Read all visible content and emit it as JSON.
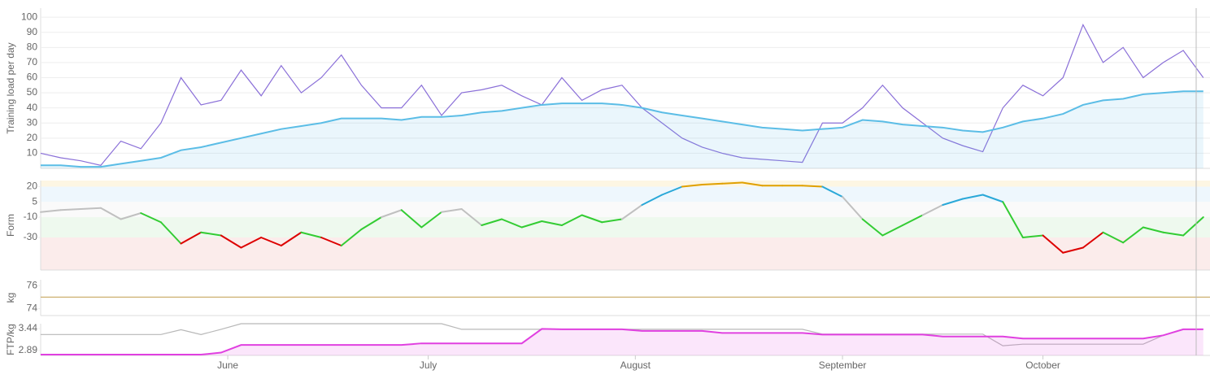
{
  "chart_data": [
    {
      "type": "line",
      "ylabel": "Training load per day",
      "x": [
        0,
        3,
        6,
        9,
        12,
        15,
        18,
        21,
        24,
        27,
        30,
        33,
        36,
        39,
        42,
        45,
        48,
        51,
        54,
        57,
        60,
        63,
        66,
        69,
        72,
        75,
        78,
        81,
        84,
        87,
        90,
        93,
        96,
        99,
        102,
        105,
        108,
        111,
        114,
        117,
        120,
        123,
        126,
        129,
        132,
        135,
        138,
        141,
        144,
        147,
        150,
        153,
        156,
        159,
        162,
        165,
        168,
        171,
        174
      ],
      "xlim": [
        0,
        175
      ],
      "ylim": [
        0,
        106
      ],
      "yticks": [
        10,
        20,
        30,
        40,
        50,
        60,
        70,
        80,
        90,
        100
      ],
      "grid": true,
      "series": [
        {
          "color": "#8a6fd8",
          "values": [
            10,
            7,
            5,
            2,
            18,
            13,
            30,
            60,
            42,
            45,
            65,
            48,
            68,
            50,
            60,
            75,
            55,
            40,
            40,
            55,
            35,
            50,
            52,
            55,
            48,
            42,
            60,
            45,
            52,
            55,
            40,
            30,
            20,
            14,
            10,
            7,
            6,
            5,
            4,
            30,
            30,
            40,
            55,
            40,
            30,
            20,
            15,
            11,
            40,
            55,
            48,
            60,
            95,
            70,
            80,
            60,
            70,
            78,
            60
          ]
        },
        {
          "color": "#5bbde6",
          "area": true,
          "values": [
            2,
            2,
            1,
            1,
            3,
            5,
            7,
            12,
            14,
            17,
            20,
            23,
            26,
            28,
            30,
            33,
            33,
            33,
            32,
            34,
            34,
            35,
            37,
            38,
            40,
            42,
            43,
            43,
            43,
            42,
            40,
            37,
            35,
            33,
            31,
            29,
            27,
            26,
            25,
            26,
            27,
            32,
            31,
            29,
            28,
            27,
            25,
            24,
            27,
            31,
            33,
            36,
            42,
            45,
            46,
            49,
            50,
            51,
            51
          ]
        }
      ]
    },
    {
      "type": "line",
      "ylabel": "Form",
      "x": [
        0,
        3,
        6,
        9,
        12,
        15,
        18,
        21,
        24,
        27,
        30,
        33,
        36,
        39,
        42,
        45,
        48,
        51,
        54,
        57,
        60,
        63,
        66,
        69,
        72,
        75,
        78,
        81,
        84,
        87,
        90,
        93,
        96,
        99,
        102,
        105,
        108,
        111,
        114,
        117,
        120,
        123,
        126,
        129,
        132,
        135,
        138,
        141,
        144,
        147,
        150,
        153,
        156,
        159,
        162,
        165,
        168,
        171,
        174
      ],
      "xlim": [
        0,
        175
      ],
      "ylim": [
        -62,
        26
      ],
      "yticks": [
        20,
        5,
        -10,
        -30
      ],
      "zones": [
        {
          "above": 20,
          "band": "#fdf6e3",
          "line": "#e0a000"
        },
        {
          "above": 5,
          "band": "#eef7fd",
          "line": "#2aa8d8"
        },
        {
          "above": -10,
          "band": "#fafafa",
          "line": "#c0c0c0"
        },
        {
          "above": -30,
          "band": "#eef9ee",
          "line": "#33cc33"
        },
        {
          "above": null,
          "band": "#fbeceb",
          "line": "#dd0000"
        }
      ],
      "series": [
        {
          "values": [
            -5,
            -3,
            -2,
            -1,
            -12,
            -6,
            -15,
            -36,
            -25,
            -28,
            -40,
            -30,
            -38,
            -25,
            -30,
            -38,
            -22,
            -10,
            -3,
            -20,
            -5,
            -2,
            -18,
            -12,
            -20,
            -14,
            -18,
            -8,
            -15,
            -12,
            2,
            12,
            20,
            22,
            23,
            24,
            21,
            21,
            21,
            20,
            10,
            -12,
            -28,
            -18,
            -8,
            2,
            8,
            12,
            5,
            -30,
            -28,
            -45,
            -40,
            -25,
            -35,
            -20,
            -25,
            -28,
            -10
          ]
        }
      ]
    },
    {
      "type": "line",
      "ylabel": "kg",
      "x": [
        0,
        175
      ],
      "xlim": [
        0,
        175
      ],
      "ylim": [
        73.4,
        76.5
      ],
      "yticks": [
        76,
        74
      ],
      "series": [
        {
          "color": "#c8a860",
          "values": [
            75,
            75
          ]
        }
      ]
    },
    {
      "type": "line",
      "ylabel": "FTP/kg",
      "x": [
        0,
        3,
        6,
        9,
        12,
        15,
        18,
        21,
        24,
        27,
        30,
        33,
        36,
        39,
        42,
        45,
        48,
        51,
        54,
        57,
        60,
        63,
        66,
        69,
        72,
        75,
        78,
        81,
        84,
        87,
        90,
        93,
        96,
        99,
        102,
        105,
        108,
        111,
        114,
        117,
        120,
        123,
        126,
        129,
        132,
        135,
        138,
        141,
        144,
        147,
        150,
        153,
        156,
        159,
        162,
        165,
        168,
        171,
        174
      ],
      "xlim": [
        0,
        175
      ],
      "ylim": [
        2.77,
        3.56
      ],
      "yticks": [
        3.44,
        2.89
      ],
      "xticks": [
        {
          "value": 28,
          "label": "June"
        },
        {
          "value": 58,
          "label": "July"
        },
        {
          "value": 89,
          "label": "August"
        },
        {
          "value": 120,
          "label": "September"
        },
        {
          "value": 150,
          "label": "October"
        }
      ],
      "series": [
        {
          "color": "#b8b8b8",
          "values": [
            3.29,
            3.29,
            3.29,
            3.29,
            3.29,
            3.29,
            3.29,
            3.41,
            3.29,
            3.42,
            3.56,
            3.56,
            3.56,
            3.56,
            3.56,
            3.56,
            3.56,
            3.56,
            3.56,
            3.56,
            3.56,
            3.42,
            3.42,
            3.42,
            3.42,
            3.42,
            3.42,
            3.42,
            3.42,
            3.42,
            3.42,
            3.42,
            3.42,
            3.42,
            3.42,
            3.42,
            3.42,
            3.42,
            3.42,
            3.3,
            3.3,
            3.3,
            3.3,
            3.3,
            3.3,
            3.3,
            3.3,
            3.3,
            3.01,
            3.05,
            3.05,
            3.05,
            3.05,
            3.05,
            3.05,
            3.05,
            3.27,
            3.42,
            3.42
          ]
        },
        {
          "color": "#e040e0",
          "area": true,
          "values": [
            2.79,
            2.79,
            2.79,
            2.79,
            2.79,
            2.79,
            2.79,
            2.79,
            2.79,
            2.84,
            3.03,
            3.03,
            3.03,
            3.03,
            3.03,
            3.03,
            3.03,
            3.03,
            3.03,
            3.07,
            3.07,
            3.07,
            3.07,
            3.07,
            3.07,
            3.43,
            3.42,
            3.42,
            3.42,
            3.42,
            3.38,
            3.38,
            3.38,
            3.38,
            3.33,
            3.33,
            3.33,
            3.33,
            3.33,
            3.29,
            3.29,
            3.29,
            3.29,
            3.29,
            3.29,
            3.24,
            3.24,
            3.24,
            3.24,
            3.19,
            3.19,
            3.19,
            3.19,
            3.19,
            3.19,
            3.19,
            3.27,
            3.42,
            3.42
          ]
        }
      ]
    }
  ]
}
